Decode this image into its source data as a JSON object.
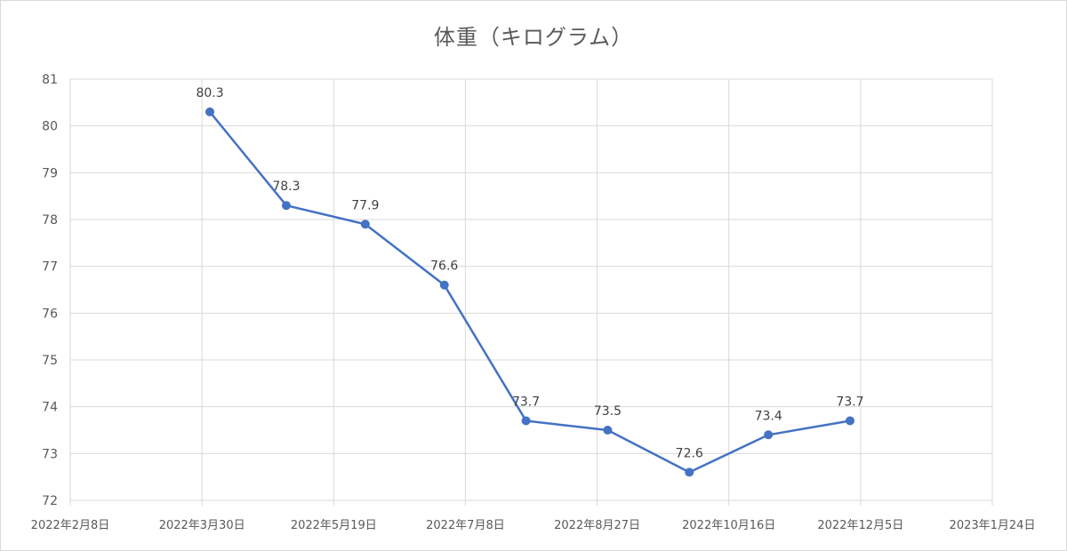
{
  "chart_data": {
    "type": "line",
    "title": "体重（キログラム）",
    "xlabel": "",
    "ylabel": "",
    "ylim": [
      72,
      81
    ],
    "y_ticks": [
      72,
      73,
      74,
      75,
      76,
      77,
      78,
      79,
      80,
      81
    ],
    "x_axis": {
      "type": "date",
      "min": "2022-02-08",
      "max": "2023-01-24",
      "tick_labels": [
        "2022年2月8日",
        "2022年3月30日",
        "2022年5月19日",
        "2022年7月8日",
        "2022年8月27日",
        "2022年10月16日",
        "2022年12月5日",
        "2023年1月24日"
      ],
      "tick_dates": [
        "2022-02-08",
        "2022-03-30",
        "2022-05-19",
        "2022-07-08",
        "2022-08-27",
        "2022-10-16",
        "2022-12-05",
        "2023-01-24"
      ]
    },
    "grid": true,
    "legend": "none",
    "series": [
      {
        "color": "#4472c4",
        "points": [
          {
            "date": "2022-04-02",
            "value": 80.3,
            "label": "80.3"
          },
          {
            "date": "2022-05-01",
            "value": 78.3,
            "label": "78.3"
          },
          {
            "date": "2022-05-31",
            "value": 77.9,
            "label": "77.9"
          },
          {
            "date": "2022-06-30",
            "value": 76.6,
            "label": "76.6"
          },
          {
            "date": "2022-07-31",
            "value": 73.7,
            "label": "73.7"
          },
          {
            "date": "2022-08-31",
            "value": 73.5,
            "label": "73.5"
          },
          {
            "date": "2022-10-01",
            "value": 72.6,
            "label": "72.6"
          },
          {
            "date": "2022-10-31",
            "value": 73.4,
            "label": "73.4"
          },
          {
            "date": "2022-12-01",
            "value": 73.7,
            "label": "73.7"
          }
        ]
      }
    ]
  }
}
